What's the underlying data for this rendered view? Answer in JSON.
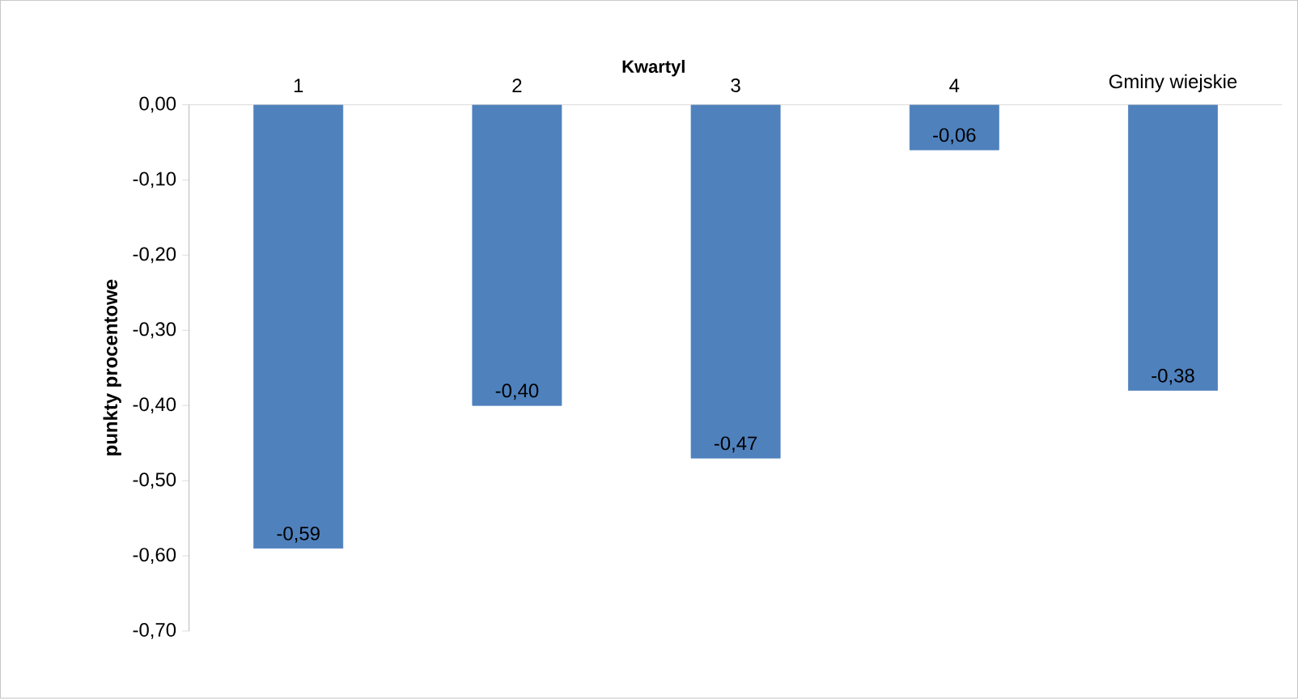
{
  "chart_data": {
    "type": "bar",
    "xlabel": "Kwartyl",
    "ylabel": "punkty procentowe",
    "categories": [
      "1",
      "2",
      "3",
      "4",
      "Gminy wiejskie"
    ],
    "values": [
      -0.59,
      -0.4,
      -0.47,
      -0.06,
      -0.38
    ],
    "value_labels": [
      "-0,59",
      "-0,40",
      "-0,47",
      "-0,06",
      "-0,38"
    ],
    "color": "#4f81bd",
    "ylim": [
      -0.7,
      0
    ],
    "yticks": [
      {
        "value": 0,
        "label": "0,00"
      },
      {
        "value": -0.1,
        "label": "-0,10"
      },
      {
        "value": -0.2,
        "label": "-0,20"
      },
      {
        "value": -0.3,
        "label": "-0,30"
      },
      {
        "value": -0.4,
        "label": "-0,40"
      },
      {
        "value": -0.5,
        "label": "-0,50"
      },
      {
        "value": -0.6,
        "label": "-0,60"
      },
      {
        "value": -0.7,
        "label": "-0,70"
      }
    ]
  }
}
